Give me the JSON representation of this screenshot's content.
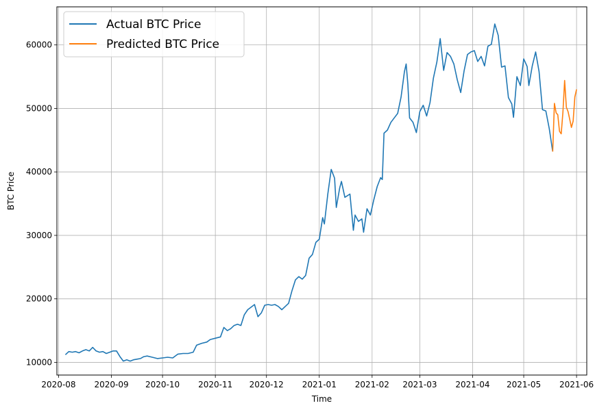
{
  "chart_data": {
    "type": "line",
    "title": "",
    "xlabel": "Time",
    "ylabel": "BTC Price",
    "xlim": [
      "2020-07-31",
      "2021-06-07"
    ],
    "ylim": [
      8000,
      66000
    ],
    "grid": true,
    "legend_position": "top-left",
    "x_ticks": [
      "2020-08",
      "2020-09",
      "2020-10",
      "2020-11",
      "2020-12",
      "2021-01",
      "2021-02",
      "2021-03",
      "2021-04",
      "2021-05",
      "2021-06"
    ],
    "y_ticks": [
      10000,
      20000,
      30000,
      40000,
      50000,
      60000
    ],
    "series": [
      {
        "name": "Actual BTC Price",
        "color": "#1f77b4",
        "points": [
          [
            "2020-08-05",
            11200
          ],
          [
            "2020-08-07",
            11700
          ],
          [
            "2020-08-09",
            11600
          ],
          [
            "2020-08-11",
            11700
          ],
          [
            "2020-08-13",
            11500
          ],
          [
            "2020-08-15",
            11800
          ],
          [
            "2020-08-17",
            12000
          ],
          [
            "2020-08-19",
            11800
          ],
          [
            "2020-08-21",
            12350
          ],
          [
            "2020-08-23",
            11800
          ],
          [
            "2020-08-25",
            11600
          ],
          [
            "2020-08-27",
            11700
          ],
          [
            "2020-08-29",
            11400
          ],
          [
            "2020-08-31",
            11600
          ],
          [
            "2020-09-02",
            11800
          ],
          [
            "2020-09-04",
            11800
          ],
          [
            "2020-09-06",
            10900
          ],
          [
            "2020-09-08",
            10200
          ],
          [
            "2020-09-10",
            10400
          ],
          [
            "2020-09-12",
            10200
          ],
          [
            "2020-09-14",
            10400
          ],
          [
            "2020-09-16",
            10500
          ],
          [
            "2020-09-18",
            10600
          ],
          [
            "2020-09-20",
            10900
          ],
          [
            "2020-09-22",
            11000
          ],
          [
            "2020-09-25",
            10800
          ],
          [
            "2020-09-28",
            10600
          ],
          [
            "2020-10-01",
            10700
          ],
          [
            "2020-10-04",
            10800
          ],
          [
            "2020-10-07",
            10700
          ],
          [
            "2020-10-10",
            11300
          ],
          [
            "2020-10-13",
            11400
          ],
          [
            "2020-10-16",
            11400
          ],
          [
            "2020-10-19",
            11600
          ],
          [
            "2020-10-21",
            12700
          ],
          [
            "2020-10-24",
            13000
          ],
          [
            "2020-10-27",
            13200
          ],
          [
            "2020-10-29",
            13600
          ],
          [
            "2020-11-01",
            13800
          ],
          [
            "2020-11-04",
            14000
          ],
          [
            "2020-11-06",
            15500
          ],
          [
            "2020-11-08",
            15000
          ],
          [
            "2020-11-10",
            15300
          ],
          [
            "2020-11-12",
            15800
          ],
          [
            "2020-11-14",
            16000
          ],
          [
            "2020-11-16",
            15800
          ],
          [
            "2020-11-18",
            17500
          ],
          [
            "2020-11-20",
            18300
          ],
          [
            "2020-11-22",
            18700
          ],
          [
            "2020-11-24",
            19100
          ],
          [
            "2020-11-26",
            17200
          ],
          [
            "2020-11-28",
            17800
          ],
          [
            "2020-11-30",
            19000
          ],
          [
            "2020-12-02",
            19100
          ],
          [
            "2020-12-04",
            19000
          ],
          [
            "2020-12-06",
            19100
          ],
          [
            "2020-12-08",
            18800
          ],
          [
            "2020-12-10",
            18300
          ],
          [
            "2020-12-12",
            18800
          ],
          [
            "2020-12-14",
            19300
          ],
          [
            "2020-12-16",
            21300
          ],
          [
            "2020-12-18",
            23000
          ],
          [
            "2020-12-20",
            23500
          ],
          [
            "2020-12-22",
            23100
          ],
          [
            "2020-12-24",
            23700
          ],
          [
            "2020-12-26",
            26400
          ],
          [
            "2020-12-28",
            27000
          ],
          [
            "2020-12-30",
            28900
          ],
          [
            "2021-01-01",
            29400
          ],
          [
            "2021-01-03",
            32800
          ],
          [
            "2021-01-04",
            31800
          ],
          [
            "2021-01-06",
            36500
          ],
          [
            "2021-01-08",
            40400
          ],
          [
            "2021-01-10",
            39000
          ],
          [
            "2021-01-11",
            34400
          ],
          [
            "2021-01-13",
            37500
          ],
          [
            "2021-01-14",
            38500
          ],
          [
            "2021-01-16",
            36000
          ],
          [
            "2021-01-19",
            36500
          ],
          [
            "2021-01-21",
            30800
          ],
          [
            "2021-01-22",
            33200
          ],
          [
            "2021-01-24",
            32200
          ],
          [
            "2021-01-26",
            32600
          ],
          [
            "2021-01-27",
            30500
          ],
          [
            "2021-01-29",
            34200
          ],
          [
            "2021-01-31",
            33200
          ],
          [
            "2021-02-02",
            35600
          ],
          [
            "2021-02-04",
            37700
          ],
          [
            "2021-02-06",
            39100
          ],
          [
            "2021-02-07",
            38800
          ],
          [
            "2021-02-08",
            46100
          ],
          [
            "2021-02-10",
            46600
          ],
          [
            "2021-02-12",
            47800
          ],
          [
            "2021-02-14",
            48500
          ],
          [
            "2021-02-16",
            49200
          ],
          [
            "2021-02-18",
            51800
          ],
          [
            "2021-02-20",
            55800
          ],
          [
            "2021-02-21",
            57000
          ],
          [
            "2021-02-22",
            53800
          ],
          [
            "2021-02-23",
            48500
          ],
          [
            "2021-02-25",
            47800
          ],
          [
            "2021-02-27",
            46200
          ],
          [
            "2021-03-01",
            49500
          ],
          [
            "2021-03-03",
            50500
          ],
          [
            "2021-03-05",
            48800
          ],
          [
            "2021-03-07",
            50900
          ],
          [
            "2021-03-09",
            54800
          ],
          [
            "2021-03-11",
            57300
          ],
          [
            "2021-03-13",
            61000
          ],
          [
            "2021-03-15",
            56000
          ],
          [
            "2021-03-17",
            58800
          ],
          [
            "2021-03-19",
            58200
          ],
          [
            "2021-03-21",
            57000
          ],
          [
            "2021-03-23",
            54500
          ],
          [
            "2021-03-25",
            52500
          ],
          [
            "2021-03-27",
            55900
          ],
          [
            "2021-03-29",
            58500
          ],
          [
            "2021-03-31",
            58900
          ],
          [
            "2021-04-02",
            59100
          ],
          [
            "2021-04-04",
            57400
          ],
          [
            "2021-04-06",
            58200
          ],
          [
            "2021-04-08",
            56700
          ],
          [
            "2021-04-10",
            59800
          ],
          [
            "2021-04-12",
            60100
          ],
          [
            "2021-04-14",
            63300
          ],
          [
            "2021-04-16",
            61500
          ],
          [
            "2021-04-18",
            56500
          ],
          [
            "2021-04-20",
            56700
          ],
          [
            "2021-04-22",
            51700
          ],
          [
            "2021-04-24",
            50700
          ],
          [
            "2021-04-25",
            48600
          ],
          [
            "2021-04-27",
            55000
          ],
          [
            "2021-04-29",
            53600
          ],
          [
            "2021-05-01",
            57800
          ],
          [
            "2021-05-03",
            56600
          ],
          [
            "2021-05-04",
            53600
          ],
          [
            "2021-05-06",
            56700
          ],
          [
            "2021-05-08",
            58900
          ],
          [
            "2021-05-10",
            55800
          ],
          [
            "2021-05-12",
            49800
          ],
          [
            "2021-05-14",
            49600
          ],
          [
            "2021-05-16",
            46800
          ],
          [
            "2021-05-18",
            43200
          ]
        ]
      },
      {
        "name": "Predicted BTC Price",
        "color": "#ff7f0e",
        "points": [
          [
            "2021-05-18",
            43200
          ],
          [
            "2021-05-19",
            50800
          ],
          [
            "2021-05-20",
            49300
          ],
          [
            "2021-05-21",
            49000
          ],
          [
            "2021-05-22",
            46400
          ],
          [
            "2021-05-23",
            46000
          ],
          [
            "2021-05-24",
            49400
          ],
          [
            "2021-05-25",
            54400
          ],
          [
            "2021-05-26",
            50200
          ],
          [
            "2021-05-27",
            49500
          ],
          [
            "2021-05-28",
            48300
          ],
          [
            "2021-05-29",
            47000
          ],
          [
            "2021-05-30",
            48000
          ],
          [
            "2021-05-31",
            51800
          ],
          [
            "2021-06-01",
            53000
          ]
        ]
      }
    ]
  }
}
